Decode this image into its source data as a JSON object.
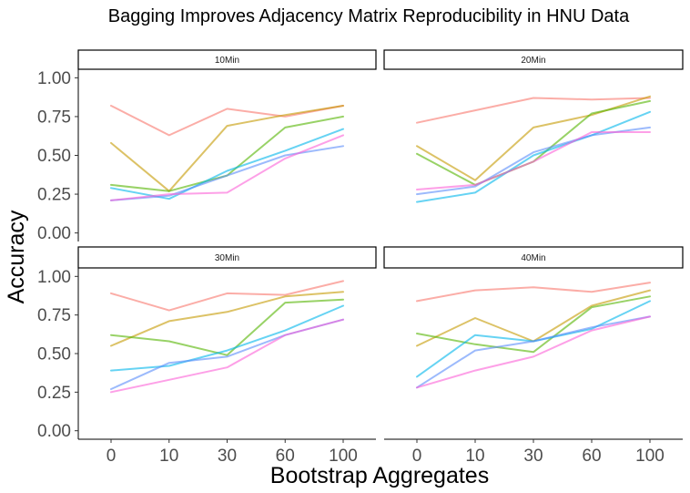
{
  "chart_data": {
    "type": "line",
    "title": "Bagging Improves Adjacency Matrix Reproducibility in HNU Data",
    "xlabel": "Bootstrap Aggregates",
    "ylabel": "Accuracy",
    "x": [
      "0",
      "10",
      "30",
      "60",
      "100"
    ],
    "ylim": [
      0,
      1
    ],
    "y_ticks": [
      "0.00",
      "0.25",
      "0.50",
      "0.75",
      "1.00"
    ],
    "grid": false,
    "legend": "none",
    "series_colors": [
      "#f8766d",
      "#c49a00",
      "#53b400",
      "#00b6eb",
      "#5a8cfa",
      "#fb61d7"
    ],
    "line_opacity": 0.6,
    "facets": [
      {
        "label": "10Min",
        "series": [
          {
            "values": [
              0.82,
              0.63,
              0.8,
              0.75,
              0.82
            ]
          },
          {
            "values": [
              0.58,
              0.27,
              0.69,
              0.76,
              0.82
            ]
          },
          {
            "values": [
              0.31,
              0.27,
              0.37,
              0.68,
              0.75
            ]
          },
          {
            "values": [
              0.29,
              0.22,
              0.4,
              0.53,
              0.67
            ]
          },
          {
            "values": [
              0.21,
              0.24,
              0.37,
              0.5,
              0.56
            ]
          },
          {
            "values": [
              0.21,
              0.25,
              0.26,
              0.48,
              0.63
            ]
          }
        ]
      },
      {
        "label": "20Min",
        "series": [
          {
            "values": [
              0.71,
              0.79,
              0.87,
              0.86,
              0.87
            ]
          },
          {
            "values": [
              0.56,
              0.34,
              0.68,
              0.76,
              0.88
            ]
          },
          {
            "values": [
              0.51,
              0.31,
              0.46,
              0.77,
              0.85
            ]
          },
          {
            "values": [
              0.2,
              0.26,
              0.5,
              0.63,
              0.78
            ]
          },
          {
            "values": [
              0.25,
              0.3,
              0.52,
              0.63,
              0.68
            ]
          },
          {
            "values": [
              0.28,
              0.31,
              0.46,
              0.65,
              0.65
            ]
          }
        ]
      },
      {
        "label": "30Min",
        "series": [
          {
            "values": [
              0.89,
              0.78,
              0.89,
              0.88,
              0.97
            ]
          },
          {
            "values": [
              0.55,
              0.71,
              0.77,
              0.87,
              0.9
            ]
          },
          {
            "values": [
              0.62,
              0.58,
              0.49,
              0.83,
              0.85
            ]
          },
          {
            "values": [
              0.39,
              0.42,
              0.52,
              0.65,
              0.81
            ]
          },
          {
            "values": [
              0.27,
              0.44,
              0.48,
              0.62,
              0.72
            ]
          },
          {
            "values": [
              0.25,
              0.33,
              0.41,
              0.62,
              0.72
            ]
          }
        ]
      },
      {
        "label": "40Min",
        "series": [
          {
            "values": [
              0.84,
              0.91,
              0.93,
              0.9,
              0.96
            ]
          },
          {
            "values": [
              0.55,
              0.73,
              0.58,
              0.81,
              0.91
            ]
          },
          {
            "values": [
              0.63,
              0.56,
              0.51,
              0.8,
              0.87
            ]
          },
          {
            "values": [
              0.35,
              0.62,
              0.58,
              0.66,
              0.84
            ]
          },
          {
            "values": [
              0.28,
              0.52,
              0.58,
              0.67,
              0.74
            ]
          },
          {
            "values": [
              0.28,
              0.39,
              0.48,
              0.65,
              0.74
            ]
          }
        ]
      }
    ]
  }
}
